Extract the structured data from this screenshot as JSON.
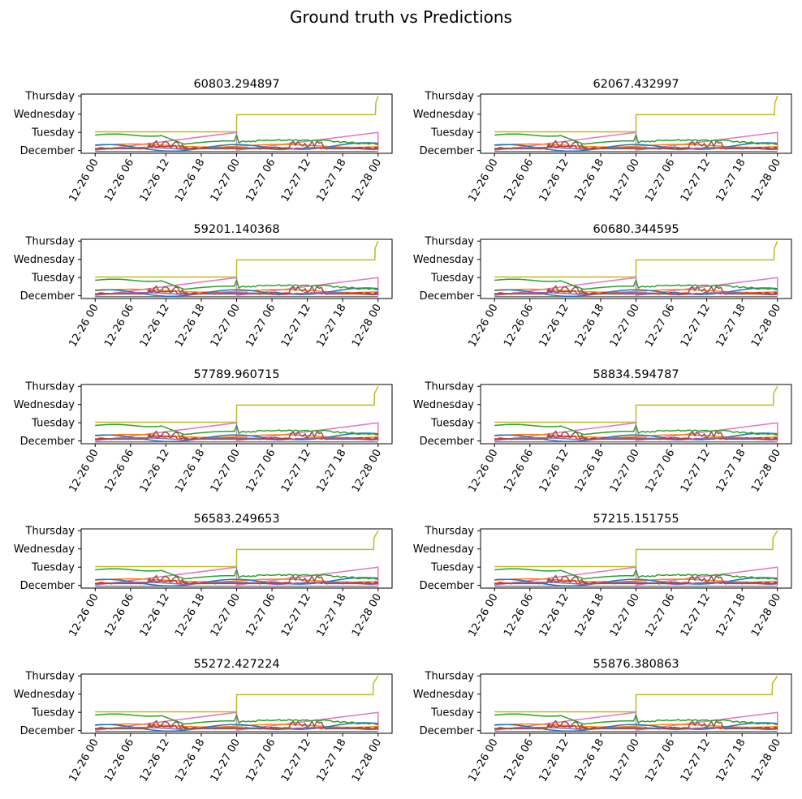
{
  "figure": {
    "suptitle": "Ground truth vs Predictions"
  },
  "series_colors": [
    "#1f77b4",
    "#ff7f0e",
    "#2ca02c",
    "#d62728",
    "#9467bd",
    "#8c564b",
    "#e377c2",
    "#7f7f7f",
    "#bcbd22"
  ],
  "chart_data": [
    {
      "type": "line",
      "title": "60803.294897",
      "x_ticks": [
        "12-26 00",
        "12-26 06",
        "12-26 12",
        "12-26 18",
        "12-27 00",
        "12-27 06",
        "12-27 12",
        "12-27 18",
        "12-28 00"
      ],
      "y_ticks": [
        "December",
        "Tuesday",
        "Wednesday",
        "Thursday"
      ],
      "xlim": [
        0,
        48
      ],
      "ylim": [
        -0.15,
        3.1
      ]
    },
    {
      "type": "line",
      "title": "62067.432997",
      "x_ticks": [
        "12-26 00",
        "12-26 06",
        "12-26 12",
        "12-26 18",
        "12-27 00",
        "12-27 06",
        "12-27 12",
        "12-27 18",
        "12-28 00"
      ],
      "y_ticks": [
        "December",
        "Tuesday",
        "Wednesday",
        "Thursday"
      ],
      "xlim": [
        0,
        48
      ],
      "ylim": [
        -0.15,
        3.1
      ]
    },
    {
      "type": "line",
      "title": "59201.140368",
      "x_ticks": [
        "12-26 00",
        "12-26 06",
        "12-26 12",
        "12-26 18",
        "12-27 00",
        "12-27 06",
        "12-27 12",
        "12-27 18",
        "12-28 00"
      ],
      "y_ticks": [
        "December",
        "Tuesday",
        "Wednesday",
        "Thursday"
      ],
      "xlim": [
        0,
        48
      ],
      "ylim": [
        -0.15,
        3.1
      ]
    },
    {
      "type": "line",
      "title": "60680.344595",
      "x_ticks": [
        "12-26 00",
        "12-26 06",
        "12-26 12",
        "12-26 18",
        "12-27 00",
        "12-27 06",
        "12-27 12",
        "12-27 18",
        "12-28 00"
      ],
      "y_ticks": [
        "December",
        "Tuesday",
        "Wednesday",
        "Thursday"
      ],
      "xlim": [
        0,
        48
      ],
      "ylim": [
        -0.15,
        3.1
      ]
    },
    {
      "type": "line",
      "title": "57789.960715",
      "x_ticks": [
        "12-26 00",
        "12-26 06",
        "12-26 12",
        "12-26 18",
        "12-27 00",
        "12-27 06",
        "12-27 12",
        "12-27 18",
        "12-28 00"
      ],
      "y_ticks": [
        "December",
        "Tuesday",
        "Wednesday",
        "Thursday"
      ],
      "xlim": [
        0,
        48
      ],
      "ylim": [
        -0.15,
        3.1
      ]
    },
    {
      "type": "line",
      "title": "58834.594787",
      "x_ticks": [
        "12-26 00",
        "12-26 06",
        "12-26 12",
        "12-26 18",
        "12-27 00",
        "12-27 06",
        "12-27 12",
        "12-27 18",
        "12-28 00"
      ],
      "y_ticks": [
        "December",
        "Tuesday",
        "Wednesday",
        "Thursday"
      ],
      "xlim": [
        0,
        48
      ],
      "ylim": [
        -0.15,
        3.1
      ]
    },
    {
      "type": "line",
      "title": "56583.249653",
      "x_ticks": [
        "12-26 00",
        "12-26 06",
        "12-26 12",
        "12-26 18",
        "12-27 00",
        "12-27 06",
        "12-27 12",
        "12-27 18",
        "12-28 00"
      ],
      "y_ticks": [
        "December",
        "Tuesday",
        "Wednesday",
        "Thursday"
      ],
      "xlim": [
        0,
        48
      ],
      "ylim": [
        -0.15,
        3.1
      ]
    },
    {
      "type": "line",
      "title": "57215.151755",
      "x_ticks": [
        "12-26 00",
        "12-26 06",
        "12-26 12",
        "12-26 18",
        "12-27 00",
        "12-27 06",
        "12-27 12",
        "12-27 18",
        "12-28 00"
      ],
      "y_ticks": [
        "December",
        "Tuesday",
        "Wednesday",
        "Thursday"
      ],
      "xlim": [
        0,
        48
      ],
      "ylim": [
        -0.15,
        3.1
      ]
    },
    {
      "type": "line",
      "title": "55272.427224",
      "x_ticks": [
        "12-26 00",
        "12-26 06",
        "12-26 12",
        "12-26 18",
        "12-27 00",
        "12-27 06",
        "12-27 12",
        "12-27 18",
        "12-28 00"
      ],
      "y_ticks": [
        "December",
        "Tuesday",
        "Wednesday",
        "Thursday"
      ],
      "xlim": [
        0,
        48
      ],
      "ylim": [
        -0.15,
        3.1
      ]
    },
    {
      "type": "line",
      "title": "55876.380863",
      "x_ticks": [
        "12-26 00",
        "12-26 06",
        "12-26 12",
        "12-26 18",
        "12-27 00",
        "12-27 06",
        "12-27 12",
        "12-27 18",
        "12-28 00"
      ],
      "y_ticks": [
        "December",
        "Tuesday",
        "Wednesday",
        "Thursday"
      ],
      "xlim": [
        0,
        48
      ],
      "ylim": [
        -0.15,
        3.1
      ]
    }
  ]
}
